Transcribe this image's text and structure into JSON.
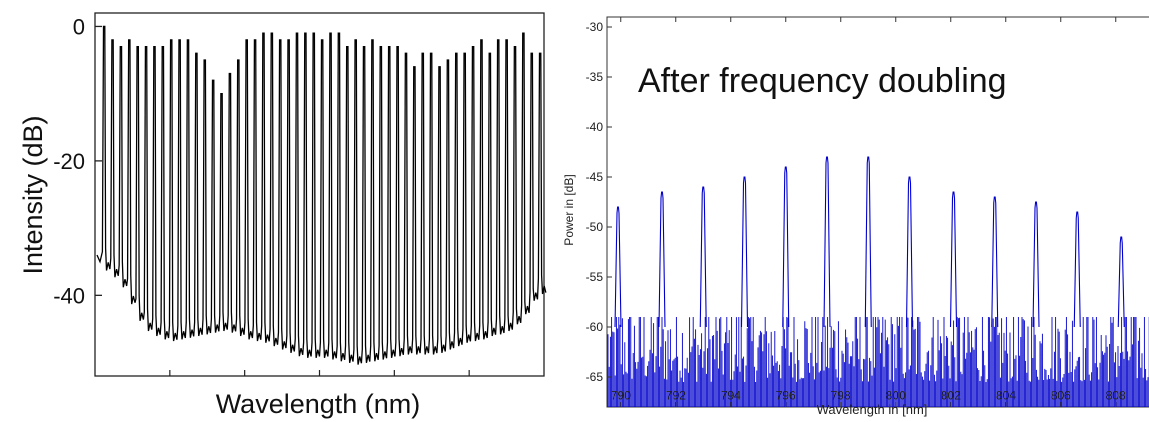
{
  "chart_data": [
    {
      "type": "line",
      "title": "",
      "xlabel": "Wavelength (nm)",
      "ylabel": "Intensity (dB)",
      "ylim": [
        -52,
        2
      ],
      "y_ticks": [
        0,
        -20,
        -40
      ],
      "y_tick_labels": [
        "0",
        "-20",
        "-40"
      ],
      "x_tick_labels": [],
      "grid": false,
      "line_color": "#000000",
      "description_of_series": "optical frequency comb, 53 narrow lines on a noise floor",
      "n_lines": 53,
      "peak_db": [
        0,
        -2,
        -3,
        -2,
        -3,
        -3,
        -3,
        -3,
        -2,
        -2,
        -2,
        -4,
        -5,
        -8,
        -10,
        -7,
        -5,
        -2,
        -2,
        -1,
        -1,
        -2,
        -2,
        -1,
        -1,
        -1,
        -2,
        -1,
        -1,
        -3,
        -2,
        -3,
        -2,
        -3,
        -3,
        -3,
        -4,
        -6,
        -4,
        -4,
        -6,
        -5,
        -4,
        -4,
        -3,
        -2,
        -4,
        -2,
        -2,
        -3,
        -1,
        -4,
        -4
      ],
      "floor_db": [
        -35,
        -36,
        -37,
        -39,
        -42,
        -44,
        -45,
        -45.5,
        -46,
        -46,
        -45.5,
        -45.5,
        -45,
        -45,
        -44.5,
        -44.5,
        -45,
        -45.5,
        -46,
        -46,
        -46.5,
        -47,
        -47.5,
        -48,
        -48.5,
        -48.5,
        -48.5,
        -48.5,
        -49,
        -49,
        -49.5,
        -49.5,
        -49,
        -49,
        -48.5,
        -48.5,
        -48,
        -48,
        -48,
        -48,
        -48,
        -47.5,
        -47,
        -46.5,
        -46,
        -46,
        -45.5,
        -45,
        -45,
        -44,
        -43,
        -41,
        -39
      ]
    },
    {
      "type": "line",
      "title": "",
      "annotation": "After frequency doubling",
      "xlabel": "Wavelength in [nm]",
      "ylabel": "Power in [dB]",
      "xlim": [
        789.5,
        809.5
      ],
      "ylim": [
        -68,
        -29
      ],
      "x_ticks": [
        790,
        792,
        794,
        796,
        798,
        800,
        802,
        804,
        806,
        808
      ],
      "y_ticks": [
        -30,
        -35,
        -40,
        -45,
        -50,
        -55,
        -60,
        -65
      ],
      "grid": false,
      "line_color": "#0000cc",
      "noise_floor_db": [
        -68,
        -59
      ],
      "peaks": {
        "x": [
          789.9,
          791.5,
          793.0,
          794.5,
          796.0,
          797.5,
          799.0,
          800.5,
          802.1,
          803.6,
          805.1,
          806.6,
          808.2
        ],
        "y": [
          -48,
          -46.5,
          -46,
          -45,
          -44,
          -43,
          -43,
          -45,
          -46.5,
          -47,
          -47.5,
          -48.5,
          -51
        ]
      }
    }
  ]
}
